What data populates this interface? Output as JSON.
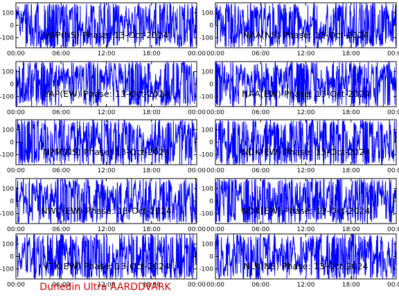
{
  "chart_data": {
    "type": "line",
    "layout": "5 rows x 2 columns",
    "x_ticks": [
      "00:00",
      "06:00",
      "12:00",
      "18:00",
      "00:00"
    ],
    "xlim_hours": [
      0,
      24
    ],
    "y_ticks": [
      100,
      0,
      -100
    ],
    "ylim": [
      -180,
      180
    ],
    "series_color": "#0000ff",
    "panels": [
      {
        "title": "VAP(NS) Phase: 13-Oct-2024",
        "station": "VAP",
        "component": "NS",
        "date": "13-Oct-2024"
      },
      {
        "title": "NAA(NS) Phase: 13-Oct-2024",
        "station": "NAA",
        "component": "NS",
        "date": "13-Oct-2024"
      },
      {
        "title": "VAP(EW) Phase: 13-Oct-2024",
        "station": "VAP",
        "component": "EW",
        "date": "13-Oct-2024"
      },
      {
        "title": "NAA(EW) Phase: 13-Oct-2024",
        "station": "NAA",
        "component": "EW",
        "date": "13-Oct-2024"
      },
      {
        "title": "NPM(NS) Phase: 13-Oct-2024",
        "station": "NPM",
        "component": "NS",
        "date": "13-Oct-2024"
      },
      {
        "title": "NDK(EW) Phase: 13-Oct-2024",
        "station": "NDK",
        "component": "EW",
        "date": "13-Oct-2024"
      },
      {
        "title": "NWC(EW) Phase: 13-Oct-2024",
        "station": "NWC",
        "component": "EW",
        "date": "13-Oct-2024"
      },
      {
        "title": "NDK(EW) Phase: 13-Oct-2024",
        "station": "NDK",
        "component": "EW",
        "date": "13-Oct-2024"
      },
      {
        "title": "VTX(EW) Phase: 13-Oct-2024",
        "station": "VTX",
        "component": "EW",
        "date": "13-Oct-2024"
      },
      {
        "title": "NLK(NS) Phase: 13-Oct-2024",
        "station": "NLK",
        "component": "NS",
        "date": "13-Oct-2024"
      }
    ]
  },
  "footer": {
    "text": "Dunedin Ultra AARDDVARK",
    "color": "#cc0000"
  }
}
